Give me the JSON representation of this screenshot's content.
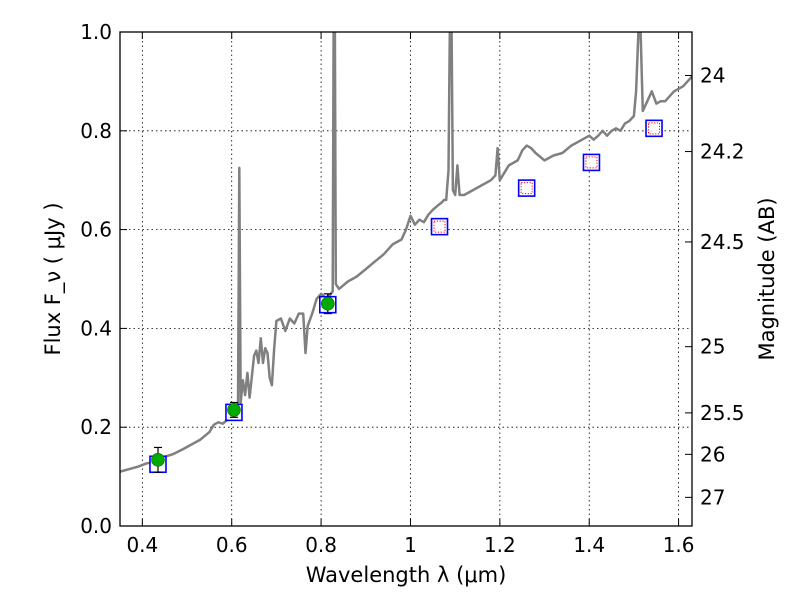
{
  "chart_data": {
    "type": "line",
    "xlabel": "Wavelength  λ (μm)",
    "ylabel": "Flux  F_ν  ( μJy )",
    "y2label": "Magnitude (AB)",
    "xlim": [
      0.35,
      1.63
    ],
    "ylim": [
      0.0,
      1.0
    ],
    "grid": true,
    "x_ticks": [
      {
        "value": 0.4,
        "label": "0.4"
      },
      {
        "value": 0.6,
        "label": "0.6"
      },
      {
        "value": 0.8,
        "label": "0.8"
      },
      {
        "value": 1.0,
        "label": "1"
      },
      {
        "value": 1.2,
        "label": "1.2"
      },
      {
        "value": 1.4,
        "label": "1.4"
      },
      {
        "value": 1.6,
        "label": "1.6"
      }
    ],
    "y_ticks": [
      {
        "value": 0.0,
        "label": "0.0"
      },
      {
        "value": 0.2,
        "label": "0.2"
      },
      {
        "value": 0.4,
        "label": "0.4"
      },
      {
        "value": 0.6,
        "label": "0.6"
      },
      {
        "value": 0.8,
        "label": "0.8"
      },
      {
        "value": 1.0,
        "label": "1.0"
      }
    ],
    "y2_ticks": [
      {
        "flux": 0.912,
        "label": "24"
      },
      {
        "flux": 0.758,
        "label": "24.2"
      },
      {
        "flux": 0.575,
        "label": "24.5"
      },
      {
        "flux": 0.363,
        "label": "25"
      },
      {
        "flux": 0.229,
        "label": "25.5"
      },
      {
        "flux": 0.145,
        "label": "26"
      },
      {
        "flux": 0.058,
        "label": "27"
      }
    ],
    "series": [
      {
        "kind": "spectrum",
        "color": "#808080",
        "points": [
          [
            0.35,
            0.11
          ],
          [
            0.37,
            0.115
          ],
          [
            0.39,
            0.12
          ],
          [
            0.41,
            0.127
          ],
          [
            0.43,
            0.13
          ],
          [
            0.45,
            0.14
          ],
          [
            0.47,
            0.146
          ],
          [
            0.49,
            0.155
          ],
          [
            0.51,
            0.165
          ],
          [
            0.53,
            0.175
          ],
          [
            0.55,
            0.19
          ],
          [
            0.56,
            0.205
          ],
          [
            0.57,
            0.21
          ],
          [
            0.58,
            0.207
          ],
          [
            0.59,
            0.215
          ],
          [
            0.6,
            0.225
          ],
          [
            0.605,
            0.24
          ],
          [
            0.61,
            0.235
          ],
          [
            0.614,
            0.245
          ],
          [
            0.617,
            0.725
          ],
          [
            0.62,
            0.25
          ],
          [
            0.625,
            0.295
          ],
          [
            0.63,
            0.265
          ],
          [
            0.635,
            0.31
          ],
          [
            0.64,
            0.26
          ],
          [
            0.65,
            0.345
          ],
          [
            0.655,
            0.355
          ],
          [
            0.66,
            0.33
          ],
          [
            0.665,
            0.38
          ],
          [
            0.67,
            0.33
          ],
          [
            0.675,
            0.36
          ],
          [
            0.68,
            0.35
          ],
          [
            0.685,
            0.3
          ],
          [
            0.69,
            0.285
          ],
          [
            0.695,
            0.36
          ],
          [
            0.7,
            0.415
          ],
          [
            0.71,
            0.42
          ],
          [
            0.72,
            0.395
          ],
          [
            0.73,
            0.42
          ],
          [
            0.74,
            0.41
          ],
          [
            0.75,
            0.43
          ],
          [
            0.76,
            0.43
          ],
          [
            0.765,
            0.35
          ],
          [
            0.77,
            0.405
          ],
          [
            0.78,
            0.43
          ],
          [
            0.79,
            0.46
          ],
          [
            0.8,
            0.47
          ],
          [
            0.81,
            0.462
          ],
          [
            0.82,
            0.468
          ],
          [
            0.826,
            0.475
          ],
          [
            0.828,
            1.0
          ],
          [
            0.831,
            1.0
          ],
          [
            0.833,
            0.49
          ],
          [
            0.84,
            0.48
          ],
          [
            0.86,
            0.495
          ],
          [
            0.88,
            0.505
          ],
          [
            0.9,
            0.52
          ],
          [
            0.92,
            0.535
          ],
          [
            0.94,
            0.55
          ],
          [
            0.96,
            0.57
          ],
          [
            0.98,
            0.58
          ],
          [
            0.99,
            0.6
          ],
          [
            1.0,
            0.628
          ],
          [
            1.01,
            0.61
          ],
          [
            1.02,
            0.62
          ],
          [
            1.03,
            0.615
          ],
          [
            1.04,
            0.63
          ],
          [
            1.05,
            0.64
          ],
          [
            1.06,
            0.648
          ],
          [
            1.07,
            0.655
          ],
          [
            1.075,
            0.66
          ],
          [
            1.08,
            0.66
          ],
          [
            1.085,
            0.72
          ],
          [
            1.088,
            1.0
          ],
          [
            1.092,
            1.0
          ],
          [
            1.095,
            0.68
          ],
          [
            1.1,
            0.67
          ],
          [
            1.105,
            0.73
          ],
          [
            1.11,
            0.67
          ],
          [
            1.12,
            0.67
          ],
          [
            1.14,
            0.68
          ],
          [
            1.16,
            0.69
          ],
          [
            1.18,
            0.7
          ],
          [
            1.19,
            0.71
          ],
          [
            1.195,
            0.765
          ],
          [
            1.2,
            0.7
          ],
          [
            1.22,
            0.73
          ],
          [
            1.24,
            0.74
          ],
          [
            1.25,
            0.76
          ],
          [
            1.26,
            0.77
          ],
          [
            1.27,
            0.765
          ],
          [
            1.28,
            0.755
          ],
          [
            1.3,
            0.74
          ],
          [
            1.32,
            0.75
          ],
          [
            1.34,
            0.755
          ],
          [
            1.36,
            0.77
          ],
          [
            1.38,
            0.78
          ],
          [
            1.4,
            0.79
          ],
          [
            1.41,
            0.782
          ],
          [
            1.42,
            0.79
          ],
          [
            1.43,
            0.8
          ],
          [
            1.44,
            0.79
          ],
          [
            1.45,
            0.8
          ],
          [
            1.46,
            0.805
          ],
          [
            1.47,
            0.8
          ],
          [
            1.48,
            0.815
          ],
          [
            1.49,
            0.82
          ],
          [
            1.5,
            0.83
          ],
          [
            1.505,
            0.88
          ],
          [
            1.51,
            1.0
          ],
          [
            1.515,
            1.0
          ],
          [
            1.52,
            0.84
          ],
          [
            1.53,
            0.86
          ],
          [
            1.54,
            0.88
          ],
          [
            1.55,
            0.855
          ],
          [
            1.56,
            0.86
          ],
          [
            1.57,
            0.86
          ],
          [
            1.58,
            0.87
          ],
          [
            1.59,
            0.88
          ],
          [
            1.6,
            0.885
          ],
          [
            1.61,
            0.89
          ],
          [
            1.62,
            0.9
          ],
          [
            1.63,
            0.91
          ]
        ]
      },
      {
        "kind": "model-photometry",
        "style": "open-square",
        "color": "#0000ff",
        "points": [
          [
            0.435,
            0.125
          ],
          [
            0.605,
            0.23
          ],
          [
            0.815,
            0.448
          ],
          [
            1.065,
            0.606
          ],
          [
            1.26,
            0.684
          ],
          [
            1.405,
            0.736
          ],
          [
            1.545,
            0.805
          ]
        ]
      },
      {
        "kind": "predicted-photometry",
        "style": "dotted-square",
        "color": "#ff0000",
        "points": [
          [
            1.065,
            0.606
          ],
          [
            1.26,
            0.684
          ],
          [
            1.405,
            0.736
          ],
          [
            1.545,
            0.805
          ]
        ]
      },
      {
        "kind": "observed-photometry",
        "style": "filled-circle",
        "color": "#00aa00",
        "points": [
          {
            "x": 0.435,
            "y": 0.134,
            "err": 0.025
          },
          {
            "x": 0.605,
            "y": 0.235,
            "err": 0.015
          },
          {
            "x": 0.815,
            "y": 0.45,
            "err": 0.02
          }
        ]
      }
    ]
  }
}
